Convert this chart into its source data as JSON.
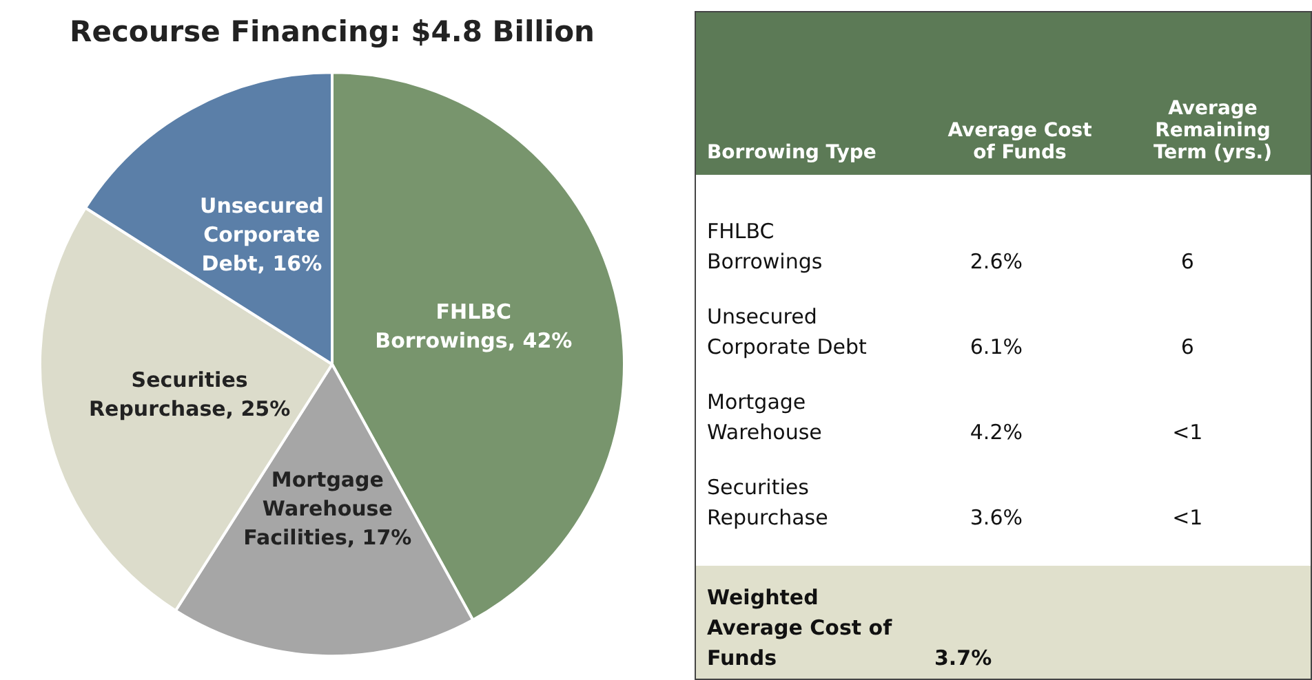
{
  "chart_data": [
    {
      "type": "pie",
      "title": "Recourse Financing: $4.8 Billion",
      "categories": [
        "FHLBC Borrowings",
        "Mortgage Warehouse Facilities",
        "Securities Repurchase",
        "Unsecured Corporate Debt"
      ],
      "values": [
        42,
        17,
        25,
        16
      ],
      "value_labels": [
        "42%",
        "17%",
        "25%",
        "16%"
      ],
      "colors": [
        "#78956d",
        "#a6a6a6",
        "#dcdccb",
        "#5b7fa8"
      ],
      "legend": false
    },
    {
      "type": "other",
      "annotations": [
        "Borrowing Type",
        "Average Cost of Funds",
        "Average Remaining Term (yrs.)",
        "FHLBC Borrowings",
        "2.6%",
        "6",
        "Unsecured Corporate Debt",
        "6.1%",
        "6",
        "Mortgage Warehouse",
        "4.2%",
        "<1",
        "Securities Repurchase",
        "3.6%",
        "<1",
        "Weighted Average Cost of Funds",
        "3.7%"
      ]
    }
  ]
}
